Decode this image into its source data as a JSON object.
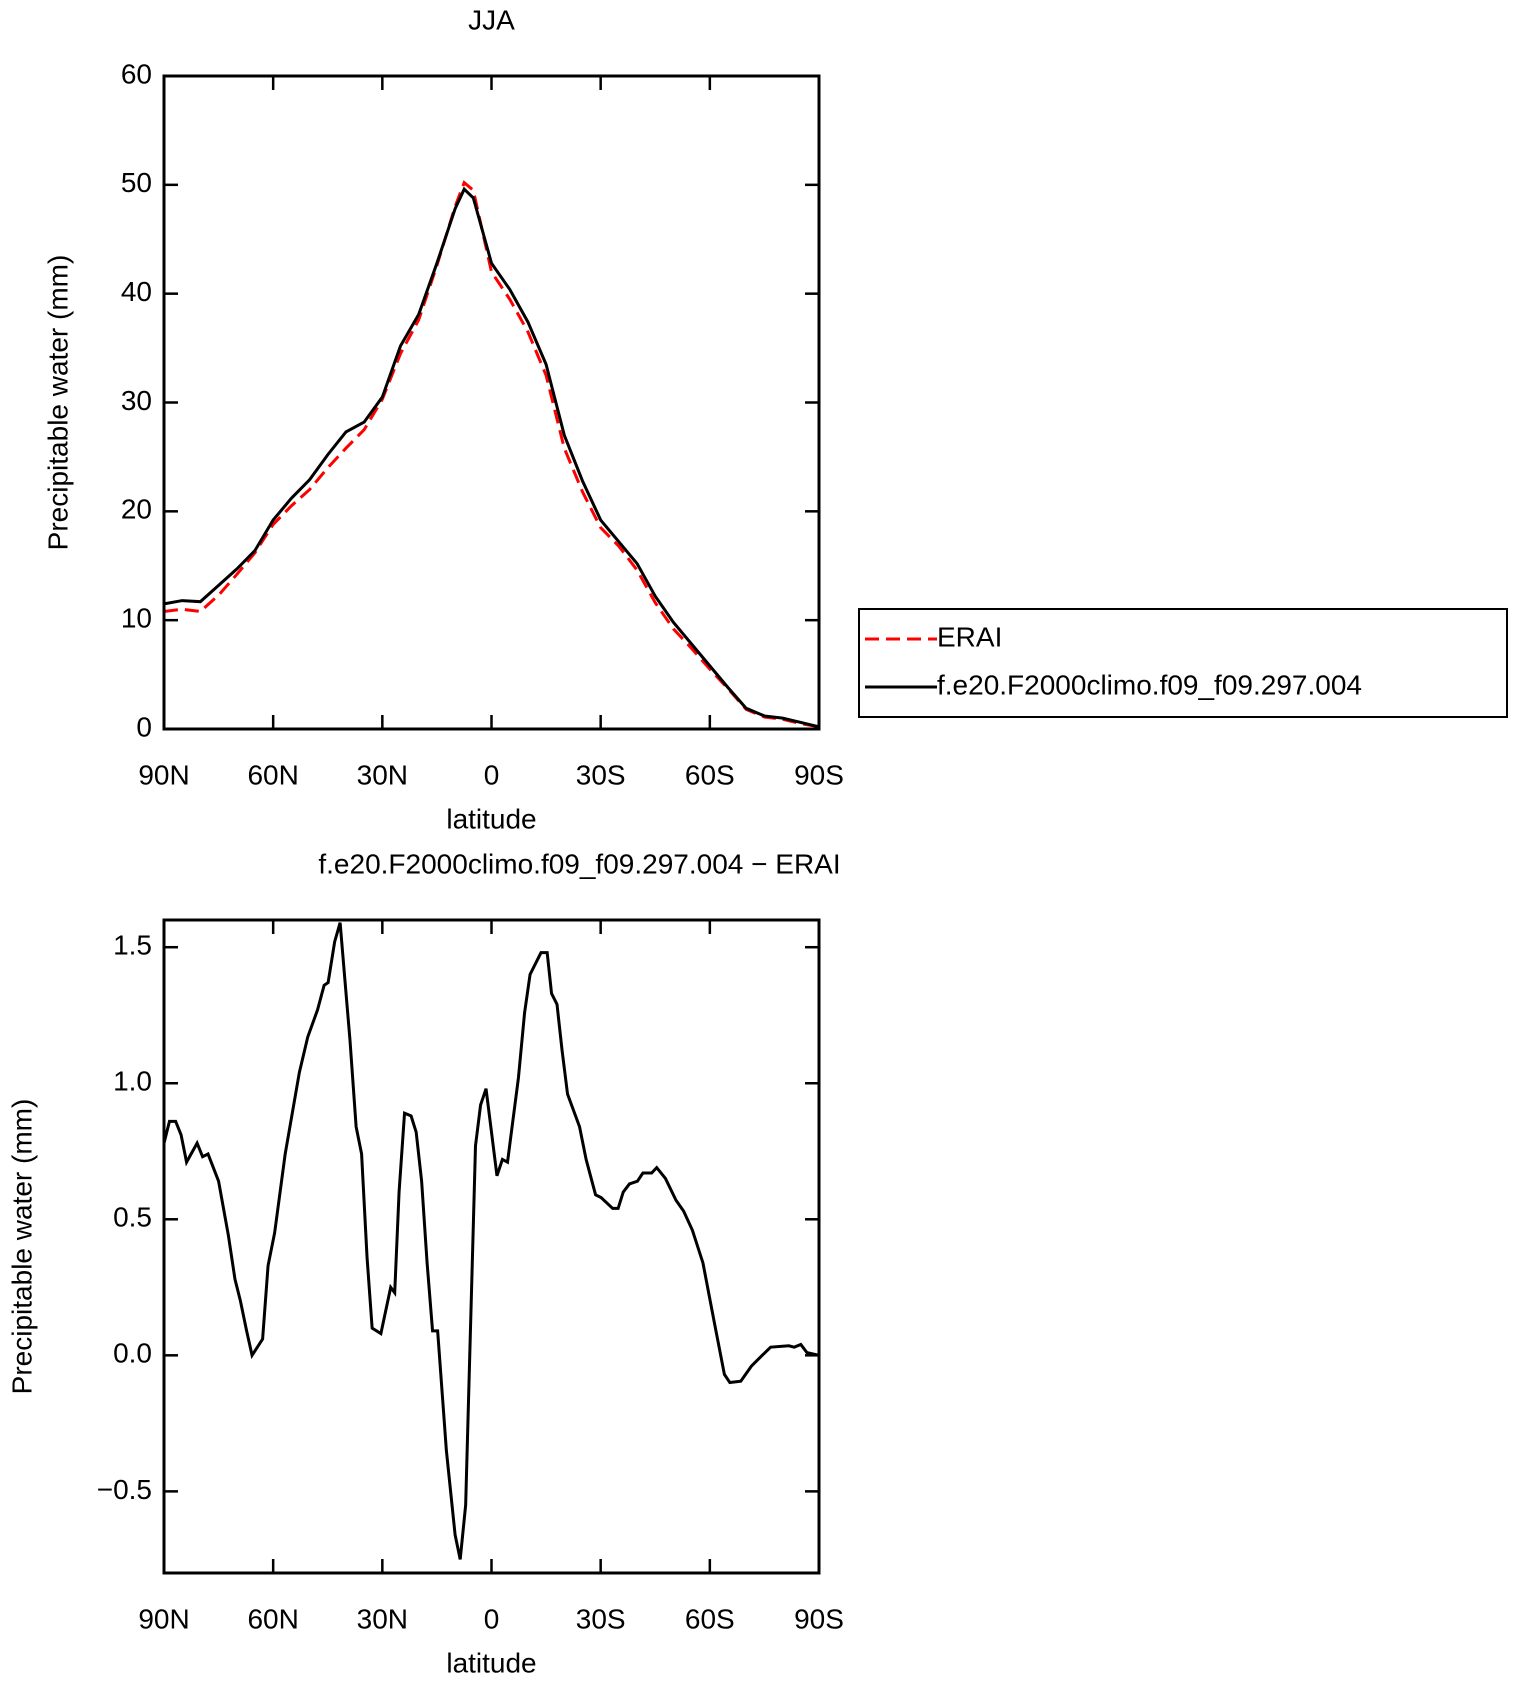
{
  "chart_data": [
    {
      "type": "line",
      "title": "JJA",
      "xlabel": "latitude",
      "ylabel": "Precipitable water (mm)",
      "x": [
        90,
        85,
        80,
        75,
        70,
        65,
        60,
        55,
        50,
        45,
        40,
        35,
        30,
        25,
        20,
        15,
        10,
        7.5,
        5,
        0,
        -5,
        -10,
        -15,
        -20,
        -25,
        -30,
        -35,
        -40,
        -45,
        -50,
        -55,
        -60,
        -65,
        -70,
        -75,
        -80,
        -85,
        -90
      ],
      "series": [
        {
          "name": "ERAI",
          "color": "#ff0000",
          "style": "dashed",
          "values": [
            10.8,
            11.0,
            10.8,
            12.3,
            14.2,
            16.2,
            18.8,
            20.5,
            22.0,
            24.0,
            25.8,
            27.5,
            30.3,
            34.5,
            37.6,
            42.6,
            48.0,
            50.2,
            49.5,
            42.0,
            39.5,
            36.5,
            32.5,
            25.8,
            21.8,
            18.5,
            16.8,
            14.6,
            11.6,
            9.2,
            7.4,
            5.5,
            3.7,
            1.8,
            1.1,
            0.9,
            0.5,
            0.2
          ]
        },
        {
          "name": "f.e20.F2000climo.f09_f09.297.004",
          "color": "#000000",
          "style": "solid",
          "values": [
            11.5,
            11.8,
            11.7,
            13.2,
            14.7,
            16.4,
            19.2,
            21.2,
            22.9,
            25.2,
            27.3,
            28.2,
            30.5,
            35.2,
            38.1,
            42.8,
            47.8,
            49.6,
            48.8,
            42.8,
            40.4,
            37.4,
            33.5,
            27.0,
            22.8,
            19.2,
            17.2,
            15.2,
            12.2,
            9.8,
            7.8,
            5.8,
            3.8,
            1.9,
            1.2,
            1.0,
            0.6,
            0.2
          ]
        }
      ],
      "xlim": [
        90,
        -90
      ],
      "xticks": [
        {
          "value": 90,
          "label": "90N"
        },
        {
          "value": 60,
          "label": "60N"
        },
        {
          "value": 30,
          "label": "30N"
        },
        0,
        {
          "value": -30,
          "label": "30S"
        },
        {
          "value": -60,
          "label": "60S"
        },
        {
          "value": -90,
          "label": "90S"
        }
      ],
      "ylim": [
        0,
        60
      ],
      "yticks": [
        0,
        10,
        20,
        30,
        40,
        50,
        60
      ],
      "legend": "right"
    },
    {
      "type": "line",
      "title": "f.e20.F2000climo.f09_f09.297.004 − ERAI",
      "xlabel": "latitude",
      "ylabel": "Precipitable water (mm)",
      "x": [
        90,
        88.5,
        86.8,
        85.3,
        83.8,
        80.9,
        79.4,
        77.9,
        75,
        72.3,
        70.5,
        69,
        67.3,
        65.8,
        62.9,
        61.4,
        59.6,
        56.7,
        52.8,
        50.5,
        47.8,
        46,
        44.9,
        43.1,
        41.6,
        40.1,
        38.9,
        37.2,
        35.7,
        34.2,
        32.8,
        30.4,
        27.7,
        26.6,
        25.4,
        23.9,
        22.1,
        20.7,
        19.2,
        17.7,
        16.2,
        14.8,
        12.4,
        10,
        8.6,
        7.1,
        4.4,
        3,
        1.5,
        -1.5,
        -3,
        -4.4,
        -7.4,
        -9.1,
        -10.6,
        -13.6,
        -15.3,
        -16.5,
        -18,
        -19.4,
        -20.9,
        -24.2,
        -26,
        -28.6,
        -30.1,
        -33.3,
        -34.8,
        -36.2,
        -37.9,
        -40.1,
        -41.6,
        -44,
        -45.4,
        -47.8,
        -50.7,
        -52.8,
        -55.2,
        -58.1,
        -61.1,
        -64,
        -65.5,
        -68.5,
        -71.4,
        -74.4,
        -76.7,
        -81.7,
        -83.2,
        -85,
        -86.7,
        -90
      ],
      "series": [
        {
          "name": "f.e20.F2000climo.f09_f09.297.004 − ERAI",
          "color": "#000000",
          "style": "solid",
          "values": [
            0.78,
            0.86,
            0.86,
            0.81,
            0.71,
            0.78,
            0.73,
            0.74,
            0.64,
            0.44,
            0.28,
            0.2,
            0.09,
            0.0,
            0.06,
            0.33,
            0.45,
            0.74,
            1.04,
            1.17,
            1.27,
            1.36,
            1.37,
            1.52,
            1.59,
            1.35,
            1.16,
            0.84,
            0.74,
            0.36,
            0.1,
            0.08,
            0.25,
            0.23,
            0.6,
            0.89,
            0.88,
            0.82,
            0.64,
            0.34,
            0.09,
            0.09,
            -0.35,
            -0.66,
            -0.75,
            -0.55,
            0.77,
            0.92,
            0.98,
            0.66,
            0.72,
            0.71,
            1.02,
            1.26,
            1.4,
            1.48,
            1.48,
            1.33,
            1.29,
            1.12,
            0.96,
            0.84,
            0.72,
            0.59,
            0.58,
            0.54,
            0.54,
            0.6,
            0.63,
            0.64,
            0.67,
            0.67,
            0.69,
            0.65,
            0.57,
            0.53,
            0.46,
            0.34,
            0.13,
            -0.07,
            -0.1,
            -0.095,
            -0.04,
            0.0,
            0.03,
            0.035,
            0.03,
            0.04,
            0.01,
            0.0
          ]
        }
      ],
      "xlim": [
        90,
        -90
      ],
      "xticks": [
        {
          "value": 90,
          "label": "90N"
        },
        {
          "value": 60,
          "label": "60N"
        },
        {
          "value": 30,
          "label": "30N"
        },
        0,
        {
          "value": -30,
          "label": "30S"
        },
        {
          "value": -60,
          "label": "60S"
        },
        {
          "value": -90,
          "label": "90S"
        }
      ],
      "ylim": [
        -0.8,
        1.6
      ],
      "yticks": [
        {
          "value": -0.5,
          "label": "−0.5"
        },
        {
          "value": 0,
          "label": "0.0"
        },
        0.5,
        {
          "value": 1,
          "label": "1.0"
        },
        1.5
      ]
    }
  ]
}
